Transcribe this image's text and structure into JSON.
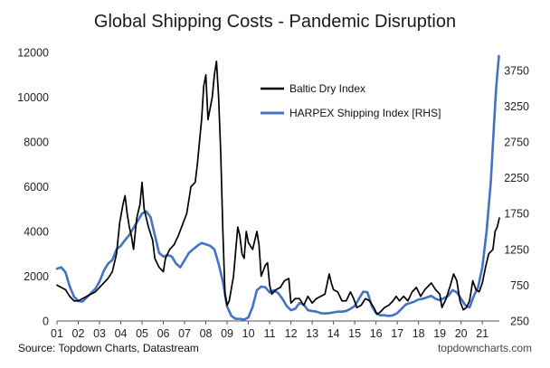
{
  "chart_data": {
    "type": "line",
    "title": "Global Shipping Costs - Pandemic Disruption",
    "x_tick_labels": [
      "01",
      "02",
      "03",
      "04",
      "05",
      "06",
      "07",
      "08",
      "09",
      "10",
      "11",
      "12",
      "13",
      "14",
      "15",
      "16",
      "17",
      "18",
      "19",
      "20",
      "21"
    ],
    "x_range": [
      2001.0,
      2021.8
    ],
    "y_left": {
      "ticks": [
        0,
        2000,
        4000,
        6000,
        8000,
        10000,
        12000
      ],
      "range": [
        0,
        12000
      ]
    },
    "y_right": {
      "ticks": [
        250,
        750,
        1250,
        1750,
        2250,
        2750,
        3250,
        3750
      ],
      "range": [
        250,
        4000
      ]
    },
    "series": [
      {
        "name": "Baltic Dry Index",
        "axis": "left",
        "color": "#000000",
        "points": [
          [
            2001.0,
            1600
          ],
          [
            2001.2,
            1500
          ],
          [
            2001.4,
            1400
          ],
          [
            2001.6,
            1100
          ],
          [
            2001.8,
            900
          ],
          [
            2002.0,
            900
          ],
          [
            2002.2,
            1000
          ],
          [
            2002.4,
            1100
          ],
          [
            2002.6,
            1200
          ],
          [
            2002.8,
            1300
          ],
          [
            2003.0,
            1500
          ],
          [
            2003.2,
            1700
          ],
          [
            2003.4,
            1900
          ],
          [
            2003.6,
            2200
          ],
          [
            2003.8,
            3000
          ],
          [
            2003.95,
            4400
          ],
          [
            2004.1,
            5200
          ],
          [
            2004.2,
            5600
          ],
          [
            2004.3,
            4800
          ],
          [
            2004.4,
            4200
          ],
          [
            2004.5,
            3800
          ],
          [
            2004.6,
            3200
          ],
          [
            2004.75,
            4600
          ],
          [
            2004.9,
            5200
          ],
          [
            2005.0,
            6200
          ],
          [
            2005.1,
            5000
          ],
          [
            2005.3,
            4200
          ],
          [
            2005.5,
            3600
          ],
          [
            2005.6,
            2800
          ],
          [
            2005.8,
            2400
          ],
          [
            2006.0,
            2200
          ],
          [
            2006.1,
            2800
          ],
          [
            2006.3,
            3200
          ],
          [
            2006.5,
            3400
          ],
          [
            2006.7,
            3800
          ],
          [
            2006.9,
            4300
          ],
          [
            2007.1,
            4800
          ],
          [
            2007.3,
            6000
          ],
          [
            2007.5,
            6200
          ],
          [
            2007.6,
            7000
          ],
          [
            2007.8,
            9000
          ],
          [
            2007.9,
            10500
          ],
          [
            2008.0,
            11000
          ],
          [
            2008.1,
            9000
          ],
          [
            2008.2,
            9500
          ],
          [
            2008.3,
            10000
          ],
          [
            2008.4,
            11000
          ],
          [
            2008.5,
            11600
          ],
          [
            2008.6,
            10000
          ],
          [
            2008.7,
            7500
          ],
          [
            2008.8,
            4000
          ],
          [
            2008.9,
            1200
          ],
          [
            2009.0,
            700
          ],
          [
            2009.1,
            900
          ],
          [
            2009.3,
            2000
          ],
          [
            2009.5,
            4200
          ],
          [
            2009.6,
            3800
          ],
          [
            2009.7,
            3000
          ],
          [
            2009.8,
            2800
          ],
          [
            2009.9,
            4000
          ],
          [
            2010.0,
            3500
          ],
          [
            2010.2,
            3200
          ],
          [
            2010.4,
            4000
          ],
          [
            2010.5,
            3400
          ],
          [
            2010.6,
            2000
          ],
          [
            2010.8,
            2500
          ],
          [
            2010.9,
            2600
          ],
          [
            2011.0,
            1600
          ],
          [
            2011.1,
            1200
          ],
          [
            2011.3,
            1400
          ],
          [
            2011.5,
            1500
          ],
          [
            2011.7,
            1800
          ],
          [
            2011.9,
            1900
          ],
          [
            2012.0,
            800
          ],
          [
            2012.2,
            1000
          ],
          [
            2012.4,
            1000
          ],
          [
            2012.6,
            700
          ],
          [
            2012.8,
            1100
          ],
          [
            2013.0,
            800
          ],
          [
            2013.2,
            1000
          ],
          [
            2013.4,
            1100
          ],
          [
            2013.6,
            1200
          ],
          [
            2013.8,
            2100
          ],
          [
            2013.9,
            1700
          ],
          [
            2014.0,
            1400
          ],
          [
            2014.2,
            1300
          ],
          [
            2014.4,
            900
          ],
          [
            2014.6,
            900
          ],
          [
            2014.8,
            1300
          ],
          [
            2014.95,
            1000
          ],
          [
            2015.1,
            600
          ],
          [
            2015.3,
            700
          ],
          [
            2015.5,
            1000
          ],
          [
            2015.7,
            900
          ],
          [
            2015.9,
            600
          ],
          [
            2016.05,
            300
          ],
          [
            2016.2,
            400
          ],
          [
            2016.4,
            600
          ],
          [
            2016.6,
            700
          ],
          [
            2016.8,
            900
          ],
          [
            2016.95,
            1100
          ],
          [
            2017.1,
            900
          ],
          [
            2017.3,
            1100
          ],
          [
            2017.5,
            900
          ],
          [
            2017.7,
            1300
          ],
          [
            2017.9,
            1500
          ],
          [
            2018.1,
            1100
          ],
          [
            2018.3,
            1400
          ],
          [
            2018.5,
            1600
          ],
          [
            2018.6,
            1700
          ],
          [
            2018.8,
            1400
          ],
          [
            2019.0,
            1200
          ],
          [
            2019.1,
            600
          ],
          [
            2019.3,
            1000
          ],
          [
            2019.5,
            1600
          ],
          [
            2019.65,
            2100
          ],
          [
            2019.8,
            1800
          ],
          [
            2019.95,
            900
          ],
          [
            2020.1,
            500
          ],
          [
            2020.25,
            600
          ],
          [
            2020.4,
            900
          ],
          [
            2020.55,
            1800
          ],
          [
            2020.7,
            1400
          ],
          [
            2020.85,
            1300
          ],
          [
            2021.0,
            1700
          ],
          [
            2021.15,
            2400
          ],
          [
            2021.3,
            3000
          ],
          [
            2021.5,
            3200
          ],
          [
            2021.6,
            4000
          ],
          [
            2021.7,
            4200
          ],
          [
            2021.8,
            4600
          ]
        ]
      },
      {
        "name": "HARPEX Shipping Index [RHS]",
        "axis": "right",
        "color": "#4472C4",
        "points": [
          [
            2001.0,
            980
          ],
          [
            2001.2,
            1000
          ],
          [
            2001.4,
            930
          ],
          [
            2001.6,
            730
          ],
          [
            2001.8,
            590
          ],
          [
            2002.0,
            530
          ],
          [
            2002.2,
            520
          ],
          [
            2002.4,
            580
          ],
          [
            2002.6,
            640
          ],
          [
            2002.8,
            700
          ],
          [
            2003.0,
            800
          ],
          [
            2003.2,
            950
          ],
          [
            2003.4,
            1050
          ],
          [
            2003.6,
            1100
          ],
          [
            2003.8,
            1250
          ],
          [
            2004.0,
            1300
          ],
          [
            2004.2,
            1380
          ],
          [
            2004.4,
            1450
          ],
          [
            2004.6,
            1550
          ],
          [
            2004.8,
            1650
          ],
          [
            2005.0,
            1750
          ],
          [
            2005.2,
            1780
          ],
          [
            2005.4,
            1700
          ],
          [
            2005.6,
            1450
          ],
          [
            2005.8,
            1200
          ],
          [
            2006.0,
            1150
          ],
          [
            2006.2,
            1170
          ],
          [
            2006.4,
            1150
          ],
          [
            2006.6,
            1050
          ],
          [
            2006.8,
            1000
          ],
          [
            2007.0,
            1100
          ],
          [
            2007.2,
            1200
          ],
          [
            2007.4,
            1250
          ],
          [
            2007.6,
            1300
          ],
          [
            2007.8,
            1340
          ],
          [
            2008.0,
            1320
          ],
          [
            2008.2,
            1300
          ],
          [
            2008.4,
            1250
          ],
          [
            2008.6,
            1050
          ],
          [
            2008.8,
            800
          ],
          [
            2009.0,
            450
          ],
          [
            2009.2,
            320
          ],
          [
            2009.4,
            280
          ],
          [
            2009.6,
            280
          ],
          [
            2009.8,
            270
          ],
          [
            2010.0,
            300
          ],
          [
            2010.2,
            450
          ],
          [
            2010.4,
            680
          ],
          [
            2010.6,
            730
          ],
          [
            2010.8,
            720
          ],
          [
            2011.0,
            650
          ],
          [
            2011.2,
            680
          ],
          [
            2011.4,
            640
          ],
          [
            2011.6,
            560
          ],
          [
            2011.8,
            460
          ],
          [
            2012.0,
            400
          ],
          [
            2012.2,
            420
          ],
          [
            2012.4,
            500
          ],
          [
            2012.6,
            480
          ],
          [
            2012.8,
            400
          ],
          [
            2013.0,
            390
          ],
          [
            2013.2,
            380
          ],
          [
            2013.4,
            360
          ],
          [
            2013.6,
            355
          ],
          [
            2013.8,
            360
          ],
          [
            2014.0,
            370
          ],
          [
            2014.2,
            380
          ],
          [
            2014.4,
            380
          ],
          [
            2014.6,
            390
          ],
          [
            2014.8,
            420
          ],
          [
            2015.0,
            460
          ],
          [
            2015.2,
            560
          ],
          [
            2015.4,
            660
          ],
          [
            2015.6,
            650
          ],
          [
            2015.8,
            460
          ],
          [
            2016.0,
            360
          ],
          [
            2016.2,
            330
          ],
          [
            2016.4,
            330
          ],
          [
            2016.6,
            320
          ],
          [
            2016.8,
            330
          ],
          [
            2017.0,
            360
          ],
          [
            2017.2,
            420
          ],
          [
            2017.4,
            480
          ],
          [
            2017.6,
            500
          ],
          [
            2017.8,
            520
          ],
          [
            2018.0,
            550
          ],
          [
            2018.2,
            560
          ],
          [
            2018.4,
            580
          ],
          [
            2018.6,
            600
          ],
          [
            2018.8,
            560
          ],
          [
            2019.0,
            540
          ],
          [
            2019.2,
            570
          ],
          [
            2019.4,
            600
          ],
          [
            2019.6,
            680
          ],
          [
            2019.8,
            650
          ],
          [
            2020.0,
            560
          ],
          [
            2020.2,
            470
          ],
          [
            2020.4,
            440
          ],
          [
            2020.6,
            600
          ],
          [
            2020.8,
            720
          ],
          [
            2021.0,
            1000
          ],
          [
            2021.2,
            1500
          ],
          [
            2021.4,
            2200
          ],
          [
            2021.55,
            3000
          ],
          [
            2021.65,
            3500
          ],
          [
            2021.72,
            3750
          ],
          [
            2021.78,
            3950
          ]
        ]
      }
    ],
    "source": "Source: Topdown Charts, Datastream",
    "watermark": "topdowncharts.com",
    "legend_position": "top-right"
  }
}
